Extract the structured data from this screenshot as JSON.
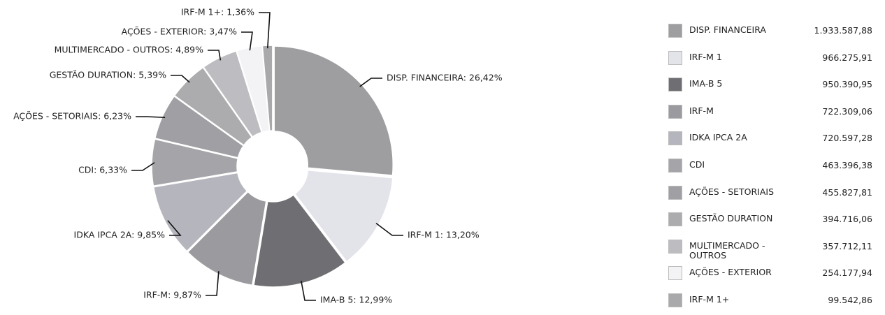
{
  "chart_data": {
    "type": "donut",
    "categories": [
      "DISP. FINANCEIRA",
      "IRF-M 1",
      "IMA-B 5",
      "IRF-M",
      "IDKA IPCA 2A",
      "CDI",
      "AÇÕES - SETORIAIS",
      "GESTÃO DURATION",
      "MULTIMERCADO - OUTROS",
      "AÇÕES - EXTERIOR",
      "IRF-M 1+"
    ],
    "values": [
      26.42,
      13.2,
      12.99,
      9.87,
      9.85,
      6.33,
      6.23,
      5.39,
      4.89,
      3.47,
      1.36
    ],
    "value_labels": [
      "DISP. FINANCEIRA: 26,42%",
      "IRF-M 1: 13,20%",
      "IMA-B 5: 12,99%",
      "IRF-M: 9,87%",
      "IDKA IPCA 2A: 9,85%",
      "CDI: 6,33%",
      "AÇÕES - SETORIAIS: 6,23%",
      "GESTÃO DURATION: 5,39%",
      "MULTIMERCADO - OUTROS: 4,89%",
      "AÇÕES - EXTERIOR: 3,47%",
      "IRF-M 1+: 1,36%"
    ],
    "colors": [
      "#9e9ea1",
      "#e3e3ea",
      "#6f6f73",
      "#9b9b9f",
      "#b5b5bd",
      "#a5a5a9",
      "#a0a0a4",
      "#acacaf",
      "#bdbdc1",
      "#f3f3f6",
      "#a9a9ab"
    ],
    "amounts": [
      "1.933.587,88",
      "966.275,91",
      "950.390,95",
      "722.309,06",
      "720.597,28",
      "463.396,38",
      "455.827,81",
      "394.716,06",
      "357.712,11",
      "254.177,94",
      "99.542,86"
    ]
  }
}
